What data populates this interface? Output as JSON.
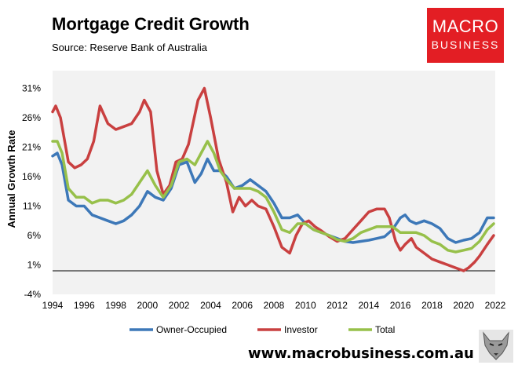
{
  "header": {
    "title": "Mortgage Credit Growth",
    "subtitle": "Source: Reserve Bank of Australia"
  },
  "logo": {
    "word1": "MACRO",
    "word2": "BUSINESS",
    "color": "#e31e24"
  },
  "footer": {
    "url": "www.macrobusiness.com.au"
  },
  "colors": {
    "owner": "#3d78b8",
    "investor": "#c94040",
    "total": "#97c04a",
    "plot_bg": "#f2f2f2"
  },
  "chart_data": {
    "type": "line",
    "title": "Mortgage Credit Growth",
    "xlabel": "",
    "ylabel": "Annual Growth Rate",
    "xlim": [
      1994,
      2022
    ],
    "ylim": [
      -4,
      34
    ],
    "y_ticks": [
      -4,
      1,
      6,
      11,
      16,
      21,
      26,
      31
    ],
    "y_tick_labels": [
      "-4%",
      "1%",
      "6%",
      "11%",
      "16%",
      "21%",
      "26%",
      "31%"
    ],
    "x_ticks": [
      1994,
      1996,
      1998,
      2000,
      2002,
      2004,
      2006,
      2008,
      2010,
      2012,
      2014,
      2016,
      2018,
      2020,
      2022
    ],
    "x_tick_labels": [
      "1994",
      "1996",
      "1998",
      "2000",
      "2002",
      "2004",
      "2006",
      "2008",
      "2010",
      "2012",
      "2014",
      "2016",
      "2018",
      "2020",
      "2022"
    ],
    "legend_position": "bottom",
    "series": [
      {
        "name": "Owner-Occupied",
        "color": "#3d78b8",
        "points": [
          [
            1994,
            19.5
          ],
          [
            1994.3,
            20
          ],
          [
            1994.6,
            18
          ],
          [
            1995,
            12
          ],
          [
            1995.5,
            11
          ],
          [
            1996,
            11
          ],
          [
            1996.5,
            9.5
          ],
          [
            1997,
            9
          ],
          [
            1997.5,
            8.5
          ],
          [
            1998,
            8
          ],
          [
            1998.5,
            8.5
          ],
          [
            1999,
            9.5
          ],
          [
            1999.5,
            11
          ],
          [
            2000,
            13.5
          ],
          [
            2000.5,
            12.5
          ],
          [
            2001,
            12
          ],
          [
            2001.5,
            14
          ],
          [
            2002,
            18
          ],
          [
            2002.5,
            18.5
          ],
          [
            2003,
            15
          ],
          [
            2003.4,
            16.5
          ],
          [
            2003.8,
            19
          ],
          [
            2004.2,
            17
          ],
          [
            2004.6,
            17
          ],
          [
            2005,
            16
          ],
          [
            2005.5,
            14
          ],
          [
            2006,
            14.5
          ],
          [
            2006.5,
            15.5
          ],
          [
            2007,
            14.5
          ],
          [
            2007.5,
            13.5
          ],
          [
            2008,
            11.5
          ],
          [
            2008.5,
            9
          ],
          [
            2009,
            9
          ],
          [
            2009.5,
            9.5
          ],
          [
            2010,
            8
          ],
          [
            2010.5,
            7
          ],
          [
            2011,
            6.5
          ],
          [
            2011.5,
            6
          ],
          [
            2012,
            5.5
          ],
          [
            2012.5,
            5
          ],
          [
            2013,
            4.8
          ],
          [
            2013.5,
            5
          ],
          [
            2014,
            5.2
          ],
          [
            2014.5,
            5.5
          ],
          [
            2015,
            5.8
          ],
          [
            2015.5,
            7
          ],
          [
            2016,
            9
          ],
          [
            2016.3,
            9.5
          ],
          [
            2016.6,
            8.5
          ],
          [
            2017,
            8
          ],
          [
            2017.5,
            8.5
          ],
          [
            2018,
            8
          ],
          [
            2018.5,
            7.2
          ],
          [
            2019,
            5.5
          ],
          [
            2019.5,
            4.8
          ],
          [
            2020,
            5.2
          ],
          [
            2020.5,
            5.5
          ],
          [
            2021,
            6.5
          ],
          [
            2021.5,
            9
          ],
          [
            2021.9,
            9
          ]
        ]
      },
      {
        "name": "Investor",
        "color": "#c94040",
        "points": [
          [
            1994,
            27
          ],
          [
            1994.2,
            28
          ],
          [
            1994.5,
            26
          ],
          [
            1995,
            18.5
          ],
          [
            1995.4,
            17.5
          ],
          [
            1995.8,
            18
          ],
          [
            1996.2,
            19
          ],
          [
            1996.6,
            22
          ],
          [
            1997,
            28
          ],
          [
            1997.5,
            25
          ],
          [
            1998,
            24
          ],
          [
            1998.5,
            24.5
          ],
          [
            1999,
            25
          ],
          [
            1999.5,
            27
          ],
          [
            1999.8,
            29
          ],
          [
            2000.2,
            27
          ],
          [
            2000.6,
            17
          ],
          [
            2001,
            13
          ],
          [
            2001.4,
            14.5
          ],
          [
            2001.8,
            18.5
          ],
          [
            2002.2,
            19
          ],
          [
            2002.6,
            21.5
          ],
          [
            2003.2,
            29
          ],
          [
            2003.6,
            31
          ],
          [
            2004,
            26
          ],
          [
            2004.5,
            19
          ],
          [
            2005,
            15
          ],
          [
            2005.4,
            10
          ],
          [
            2005.8,
            12.5
          ],
          [
            2006.2,
            11
          ],
          [
            2006.6,
            12
          ],
          [
            2007,
            11
          ],
          [
            2007.5,
            10.5
          ],
          [
            2008,
            7.5
          ],
          [
            2008.5,
            4
          ],
          [
            2009,
            3
          ],
          [
            2009.4,
            6
          ],
          [
            2009.8,
            8
          ],
          [
            2010.2,
            8.5
          ],
          [
            2010.6,
            7.5
          ],
          [
            2011,
            6.8
          ],
          [
            2011.5,
            5.8
          ],
          [
            2012,
            5
          ],
          [
            2012.5,
            5.5
          ],
          [
            2013,
            7
          ],
          [
            2013.5,
            8.5
          ],
          [
            2014,
            10
          ],
          [
            2014.5,
            10.5
          ],
          [
            2015,
            10.5
          ],
          [
            2015.3,
            9
          ],
          [
            2015.7,
            5
          ],
          [
            2016,
            3.5
          ],
          [
            2016.3,
            4.5
          ],
          [
            2016.7,
            5.5
          ],
          [
            2017,
            4
          ],
          [
            2017.5,
            3
          ],
          [
            2018,
            2
          ],
          [
            2018.5,
            1.5
          ],
          [
            2019,
            1
          ],
          [
            2019.5,
            0.5
          ],
          [
            2020,
            0
          ],
          [
            2020.3,
            0.5
          ],
          [
            2020.7,
            1.5
          ],
          [
            2021,
            2.5
          ],
          [
            2021.5,
            4.5
          ],
          [
            2021.9,
            6
          ]
        ]
      },
      {
        "name": "Total",
        "color": "#97c04a",
        "points": [
          [
            1994,
            22
          ],
          [
            1994.3,
            22
          ],
          [
            1994.6,
            20
          ],
          [
            1995,
            14
          ],
          [
            1995.5,
            12.5
          ],
          [
            1996,
            12.5
          ],
          [
            1996.5,
            11.5
          ],
          [
            1997,
            12
          ],
          [
            1997.5,
            12
          ],
          [
            1998,
            11.5
          ],
          [
            1998.5,
            12
          ],
          [
            1999,
            13
          ],
          [
            1999.5,
            15
          ],
          [
            2000,
            17
          ],
          [
            2000.5,
            14.5
          ],
          [
            2001,
            12.5
          ],
          [
            2001.5,
            14.5
          ],
          [
            2002,
            18.5
          ],
          [
            2002.5,
            19
          ],
          [
            2003,
            18
          ],
          [
            2003.4,
            20
          ],
          [
            2003.8,
            22
          ],
          [
            2004.2,
            20
          ],
          [
            2004.6,
            17
          ],
          [
            2005,
            15.5
          ],
          [
            2005.5,
            14
          ],
          [
            2006,
            14
          ],
          [
            2006.5,
            14
          ],
          [
            2007,
            13.5
          ],
          [
            2007.5,
            12.5
          ],
          [
            2008,
            10
          ],
          [
            2008.5,
            7
          ],
          [
            2009,
            6.5
          ],
          [
            2009.5,
            8
          ],
          [
            2010,
            8
          ],
          [
            2010.5,
            7
          ],
          [
            2011,
            6.5
          ],
          [
            2011.5,
            6
          ],
          [
            2012,
            5.3
          ],
          [
            2012.5,
            5
          ],
          [
            2013,
            5.5
          ],
          [
            2013.5,
            6.5
          ],
          [
            2014,
            7
          ],
          [
            2014.5,
            7.5
          ],
          [
            2015,
            7.5
          ],
          [
            2015.5,
            7.5
          ],
          [
            2016,
            6.5
          ],
          [
            2016.5,
            6.5
          ],
          [
            2017,
            6.5
          ],
          [
            2017.5,
            6
          ],
          [
            2018,
            5
          ],
          [
            2018.5,
            4.5
          ],
          [
            2019,
            3.5
          ],
          [
            2019.5,
            3.2
          ],
          [
            2020,
            3.5
          ],
          [
            2020.5,
            3.8
          ],
          [
            2021,
            5
          ],
          [
            2021.5,
            7
          ],
          [
            2021.9,
            8
          ]
        ]
      }
    ]
  }
}
